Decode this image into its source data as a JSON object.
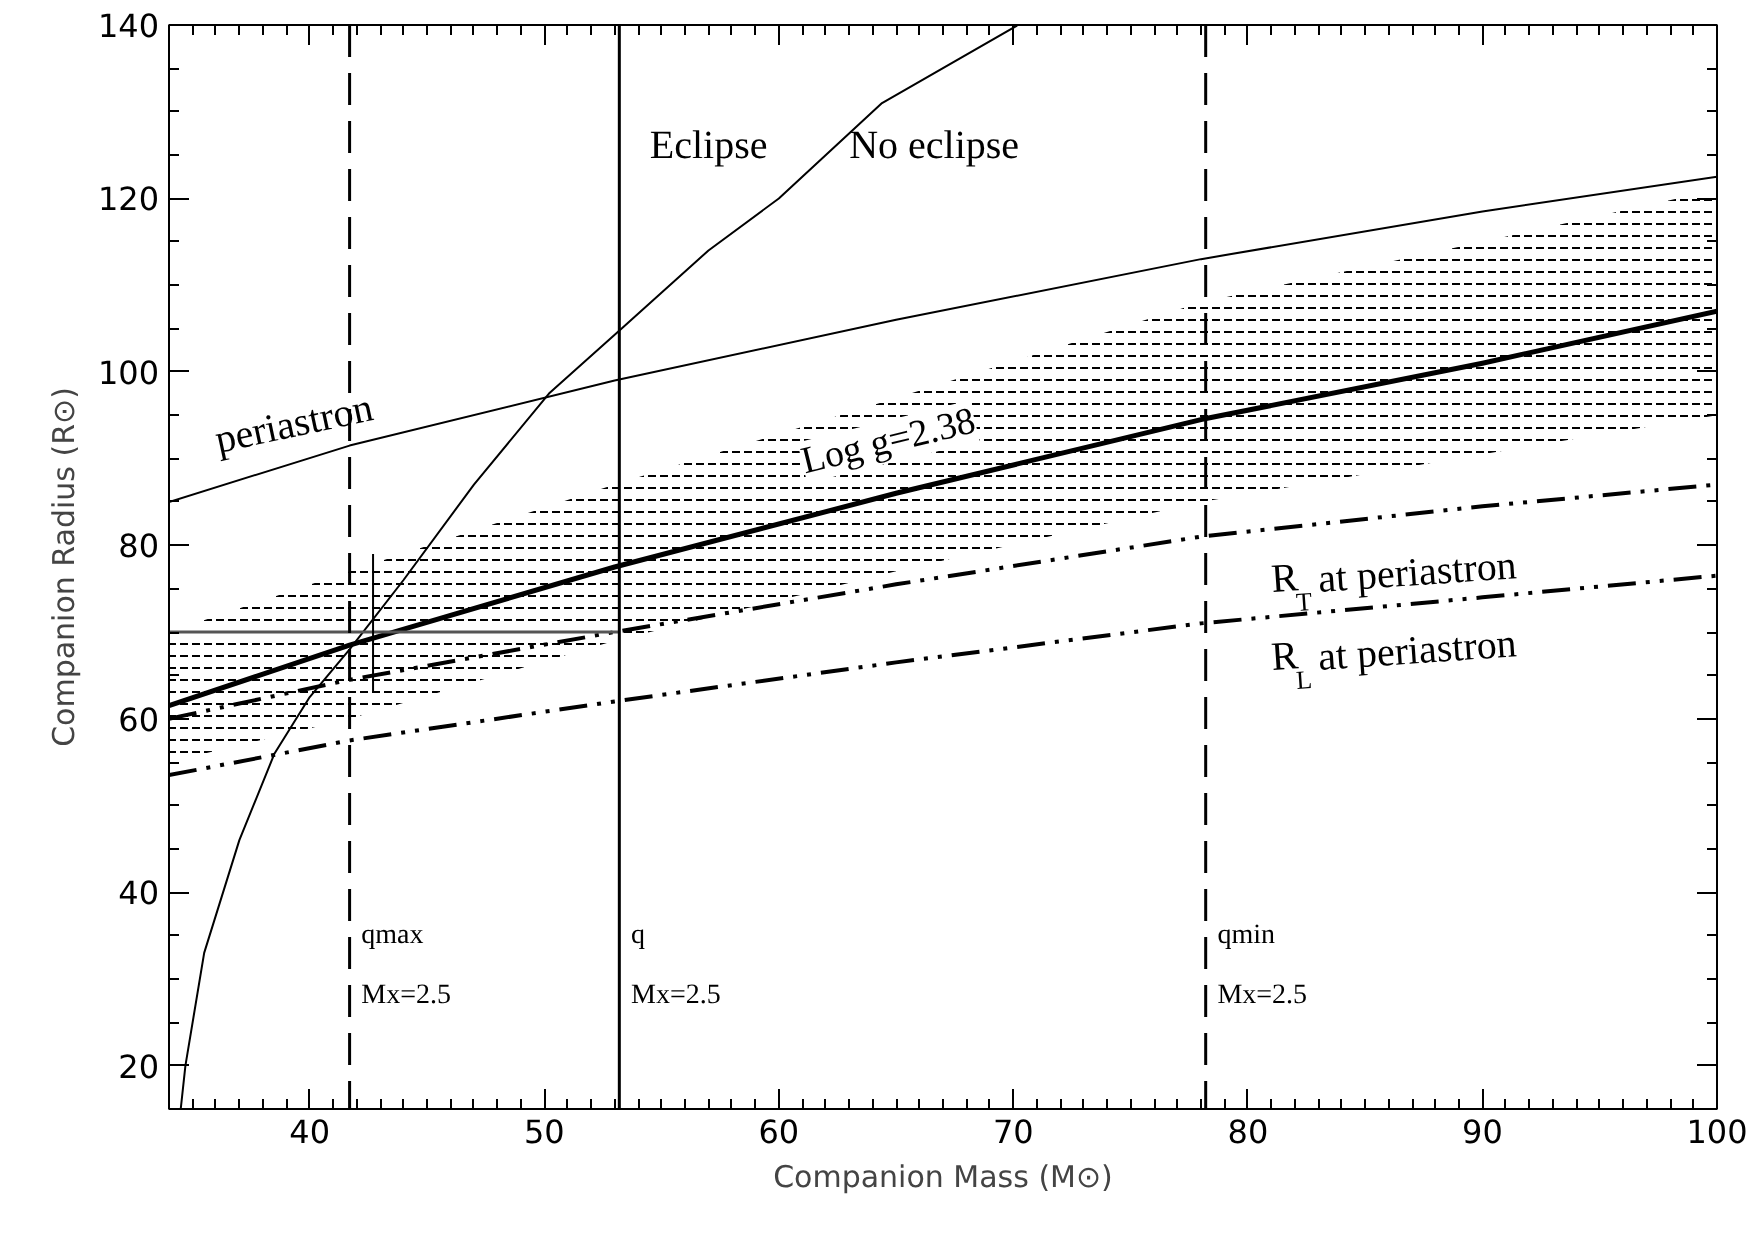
{
  "chart_data": {
    "type": "line",
    "xlabel": "Companion Mass (M⊙)",
    "ylabel": "Companion Radius (R⊙)",
    "xlim": [
      34,
      100
    ],
    "ylim": [
      15,
      140
    ],
    "xticks": [
      40,
      50,
      60,
      70,
      80,
      90,
      100
    ],
    "yticks": [
      20,
      40,
      60,
      80,
      100,
      120,
      140
    ],
    "grid": false,
    "series": [
      {
        "color": "#000000",
        "line_style": "solid",
        "x": [
          34,
          41.7,
          53,
          65,
          78,
          90,
          100
        ],
        "values": [
          85,
          91.5,
          99,
          106,
          113,
          118.5,
          122.5
        ]
      },
      {
        "color": "#000000",
        "line_style": "solid",
        "x": [
          34.5,
          34.7,
          35.5,
          37,
          38.5,
          40,
          41.7,
          44,
          47,
          50.2,
          53.3,
          57,
          60,
          64.4,
          70.2
        ],
        "values": [
          15,
          20,
          33,
          46,
          56,
          62.5,
          68,
          76,
          87,
          97.5,
          105,
          114,
          120,
          131,
          140
        ]
      },
      {
        "color": "#000000",
        "line_style": "solid",
        "x": [
          34,
          41.7,
          53,
          65,
          78,
          90,
          100
        ],
        "values": [
          61.5,
          68.5,
          77.5,
          86,
          94.5,
          101,
          107
        ],
        "lower": [
          55,
          60,
          69,
          77,
          85,
          90.5,
          95
        ],
        "upper": [
          70,
          77,
          87,
          97,
          108,
          115,
          121
        ]
      },
      {
        "color": "#000000",
        "line_style": "dashdotdot",
        "x": [
          34,
          41.7,
          53,
          65,
          78,
          90,
          100
        ],
        "values": [
          60,
          64.5,
          70,
          75.5,
          81,
          84.5,
          87
        ]
      },
      {
        "color": "#000000",
        "line_style": "dashdotdot",
        "x": [
          34,
          41.7,
          53,
          65,
          78,
          90,
          100
        ],
        "values": [
          53.5,
          57.5,
          62,
          66.5,
          71,
          74,
          76.5
        ]
      },
      {
        "color": "#555555",
        "line_style": "solid",
        "x": [
          34,
          53.2
        ],
        "values": [
          70,
          70
        ]
      },
      {
        "color": "#000000",
        "line_style": "solid",
        "x": [
          42.7,
          42.7
        ],
        "values": [
          63,
          79
        ]
      }
    ],
    "ref_lines": [
      {
        "axis": "x",
        "value": 41.7,
        "line_style": "dashed"
      },
      {
        "axis": "x",
        "value": 53.2,
        "line_style": "solid"
      },
      {
        "axis": "x",
        "value": 78.2,
        "line_style": "dashed"
      }
    ],
    "annotations": [
      "Eclipse",
      "No eclipse",
      "periastron",
      "Log g=2.38",
      "R$_{T}$ at periastron",
      "R$_{L}$ at periastron",
      "qmax",
      "Mx=2.5",
      "q",
      "Mx=2.5",
      "qmin",
      "Mx=2.5"
    ]
  }
}
